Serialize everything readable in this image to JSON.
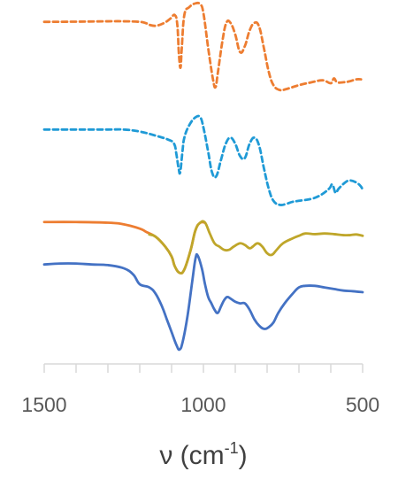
{
  "chart_data": {
    "type": "line",
    "xlabel": {
      "prefix": "ν (cm",
      "superscript": "-1",
      "suffix": ")"
    },
    "xlim": [
      1500,
      500
    ],
    "x_ticks": [
      1500,
      1000,
      500
    ],
    "x_minor_tick_step": 100,
    "y_axis_visible": false,
    "grid": false,
    "legend": "none",
    "series": [
      {
        "color": "#ED7D31",
        "dash": "dashed",
        "points": [
          [
            1500,
            1.5
          ],
          [
            1400,
            1.6
          ],
          [
            1300,
            1.8
          ],
          [
            1250,
            1.8
          ],
          [
            1200,
            1.5
          ],
          [
            1180,
            0.8
          ],
          [
            1170,
            0
          ],
          [
            1150,
            -0.5
          ],
          [
            1125,
            0.8
          ],
          [
            1105,
            3.0
          ],
          [
            1090,
            5
          ],
          [
            1082,
            0
          ],
          [
            1077,
            -15
          ],
          [
            1072,
            -22
          ],
          [
            1068,
            -12
          ],
          [
            1060,
            5
          ],
          [
            1045,
            9
          ],
          [
            1025,
            11
          ],
          [
            1010,
            10.5
          ],
          [
            1000,
            6
          ],
          [
            985,
            -12
          ],
          [
            970,
            -28
          ],
          [
            962,
            -32
          ],
          [
            955,
            -25
          ],
          [
            940,
            -8
          ],
          [
            928,
            1
          ],
          [
            915,
            1
          ],
          [
            900,
            -5
          ],
          [
            885,
            -14
          ],
          [
            870,
            -11
          ],
          [
            855,
            -3
          ],
          [
            840,
            1
          ],
          [
            825,
            -1
          ],
          [
            810,
            -12
          ],
          [
            795,
            -24
          ],
          [
            780,
            -31
          ],
          [
            760,
            -33.5
          ],
          [
            740,
            -33
          ],
          [
            700,
            -31
          ],
          [
            660,
            -29.5
          ],
          [
            625,
            -28.5
          ],
          [
            600,
            -30
          ],
          [
            590,
            -27.5
          ],
          [
            580,
            -29.5
          ],
          [
            560,
            -29.5
          ],
          [
            540,
            -29
          ],
          [
            520,
            -28
          ],
          [
            505,
            -28
          ]
        ]
      },
      {
        "color": "#1F9AD6",
        "dash": "dashed",
        "points": [
          [
            1500,
            -1
          ],
          [
            1400,
            -1
          ],
          [
            1300,
            -1
          ],
          [
            1250,
            -1
          ],
          [
            1200,
            -2
          ],
          [
            1150,
            -4
          ],
          [
            1110,
            -6
          ],
          [
            1092,
            -8
          ],
          [
            1085,
            -13
          ],
          [
            1078,
            -20
          ],
          [
            1073,
            -22
          ],
          [
            1066,
            -12
          ],
          [
            1060,
            -5
          ],
          [
            1045,
            1
          ],
          [
            1025,
            5
          ],
          [
            1010,
            5
          ],
          [
            1000,
            0
          ],
          [
            985,
            -12
          ],
          [
            973,
            -22
          ],
          [
            960,
            -24
          ],
          [
            945,
            -16
          ],
          [
            930,
            -8
          ],
          [
            915,
            -5
          ],
          [
            900,
            -8
          ],
          [
            885,
            -14
          ],
          [
            870,
            -15
          ],
          [
            855,
            -8
          ],
          [
            840,
            -5
          ],
          [
            825,
            -9
          ],
          [
            810,
            -20
          ],
          [
            795,
            -30
          ],
          [
            780,
            -36
          ],
          [
            760,
            -38
          ],
          [
            740,
            -37.5
          ],
          [
            720,
            -36.5
          ],
          [
            700,
            -36
          ],
          [
            660,
            -35
          ],
          [
            630,
            -33
          ],
          [
            605,
            -30
          ],
          [
            595,
            -28
          ],
          [
            585,
            -32
          ],
          [
            575,
            -30
          ],
          [
            555,
            -27
          ],
          [
            540,
            -26
          ],
          [
            520,
            -27
          ],
          [
            505,
            -29
          ],
          [
            500,
            -31
          ]
        ]
      },
      {
        "color": "#ED7D31",
        "dash": "solid",
        "points": [
          [
            1500,
            2.5
          ],
          [
            1400,
            2.5
          ],
          [
            1300,
            2.3
          ],
          [
            1250,
            1.8
          ],
          [
            1200,
            0.5
          ],
          [
            1180,
            -0.5
          ],
          [
            1150,
            -2
          ],
          [
            1120,
            -5
          ],
          [
            1100,
            -8
          ],
          [
            1090,
            -11
          ],
          [
            1075,
            -13
          ],
          [
            1060,
            -12
          ],
          [
            1040,
            -6
          ],
          [
            1025,
            0
          ],
          [
            1010,
            2.3
          ],
          [
            995,
            2.3
          ]
        ]
      },
      {
        "color": "#BFA62A",
        "dash": "solid",
        "points": [
          [
            1170,
            -1.3
          ],
          [
            1150,
            -2
          ],
          [
            1120,
            -5
          ],
          [
            1100,
            -8
          ],
          [
            1090,
            -11
          ],
          [
            1075,
            -13
          ],
          [
            1060,
            -12
          ],
          [
            1040,
            -6
          ],
          [
            1025,
            0
          ],
          [
            1010,
            2.3
          ],
          [
            995,
            2.3
          ],
          [
            980,
            -1
          ],
          [
            965,
            -4
          ],
          [
            950,
            -5
          ],
          [
            935,
            -6
          ],
          [
            920,
            -6
          ],
          [
            905,
            -5
          ],
          [
            885,
            -4
          ],
          [
            870,
            -4.5
          ],
          [
            855,
            -5.5
          ],
          [
            845,
            -5
          ],
          [
            830,
            -4
          ],
          [
            815,
            -5
          ],
          [
            800,
            -7
          ],
          [
            785,
            -7.5
          ],
          [
            770,
            -6
          ],
          [
            750,
            -4
          ],
          [
            720,
            -2.5
          ],
          [
            700,
            -1.7
          ],
          [
            680,
            -1
          ],
          [
            650,
            -1.2
          ],
          [
            620,
            -1
          ],
          [
            590,
            -1.2
          ],
          [
            560,
            -1.5
          ],
          [
            540,
            -1.5
          ],
          [
            520,
            -1.3
          ],
          [
            500,
            -1.7
          ]
        ]
      },
      {
        "color": "#4472C4",
        "dash": "solid",
        "points": [
          [
            1500,
            1.2
          ],
          [
            1450,
            1.5
          ],
          [
            1400,
            1.5
          ],
          [
            1350,
            1.2
          ],
          [
            1300,
            1.0
          ],
          [
            1250,
            0
          ],
          [
            1220,
            -2
          ],
          [
            1200,
            -5
          ],
          [
            1170,
            -6
          ],
          [
            1150,
            -8
          ],
          [
            1130,
            -12
          ],
          [
            1115,
            -16
          ],
          [
            1100,
            -20
          ],
          [
            1085,
            -24
          ],
          [
            1075,
            -25.5
          ],
          [
            1065,
            -23
          ],
          [
            1050,
            -15
          ],
          [
            1035,
            -4
          ],
          [
            1025,
            3
          ],
          [
            1018,
            4
          ],
          [
            1005,
            0
          ],
          [
            995,
            -5
          ],
          [
            985,
            -9
          ],
          [
            975,
            -11
          ],
          [
            965,
            -13
          ],
          [
            955,
            -14
          ],
          [
            945,
            -12
          ],
          [
            935,
            -10
          ],
          [
            925,
            -9
          ],
          [
            915,
            -9.5
          ],
          [
            900,
            -10.5
          ],
          [
            885,
            -11
          ],
          [
            870,
            -11
          ],
          [
            855,
            -13
          ],
          [
            840,
            -16
          ],
          [
            825,
            -18
          ],
          [
            810,
            -19
          ],
          [
            795,
            -18.5
          ],
          [
            780,
            -17
          ],
          [
            765,
            -14
          ],
          [
            745,
            -11
          ],
          [
            720,
            -8
          ],
          [
            700,
            -6
          ],
          [
            680,
            -5.5
          ],
          [
            650,
            -5.5
          ],
          [
            620,
            -6
          ],
          [
            590,
            -6.5
          ],
          [
            560,
            -7
          ],
          [
            530,
            -7.2
          ],
          [
            500,
            -7.5
          ]
        ]
      }
    ]
  }
}
